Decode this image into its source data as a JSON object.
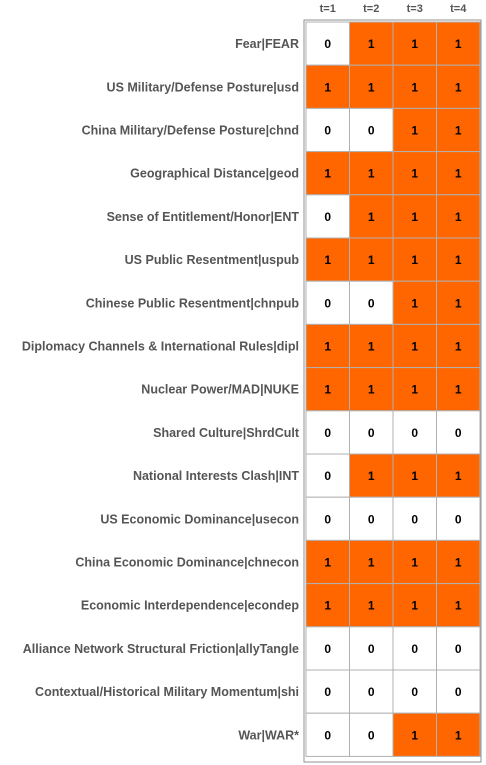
{
  "chart_data": {
    "type": "heatmap",
    "title": "",
    "columns": [
      "t=1",
      "t=2",
      "t=3",
      "t=4"
    ],
    "rows": [
      "Fear|FEAR",
      "US Military/Defense Posture|usd",
      "China Military/Defense Posture|chnd",
      "Geographical Distance|geod",
      "Sense of Entitlement/Honor|ENT",
      "US Public Resentment|uspub",
      "Chinese Public Resentment|chnpub",
      "Diplomacy Channels & International Rules|dipl",
      "Nuclear Power/MAD|NUKE",
      "Shared Culture|ShrdCult",
      "National Interests Clash|INT",
      "US Economic Dominance|usecon",
      "China Economic Dominance|chnecon",
      "Economic Interdependence|econdep",
      "Alliance Network Structural Friction|allyTangle",
      "Contextual/Historical Military Momentum|shi",
      "War|WAR*"
    ],
    "values": [
      [
        0,
        1,
        1,
        1
      ],
      [
        1,
        1,
        1,
        1
      ],
      [
        0,
        0,
        1,
        1
      ],
      [
        1,
        1,
        1,
        1
      ],
      [
        0,
        1,
        1,
        1
      ],
      [
        1,
        1,
        1,
        1
      ],
      [
        0,
        0,
        1,
        1
      ],
      [
        1,
        1,
        1,
        1
      ],
      [
        1,
        1,
        1,
        1
      ],
      [
        0,
        0,
        0,
        0
      ],
      [
        0,
        1,
        1,
        1
      ],
      [
        0,
        0,
        0,
        0
      ],
      [
        1,
        1,
        1,
        1
      ],
      [
        1,
        1,
        1,
        1
      ],
      [
        0,
        0,
        0,
        0
      ],
      [
        0,
        0,
        0,
        0
      ],
      [
        0,
        0,
        1,
        1
      ]
    ],
    "colors": {
      "on": "#ff6600",
      "off": "#ffffff",
      "grid": "#b0b0b0",
      "label": "#555555"
    }
  }
}
